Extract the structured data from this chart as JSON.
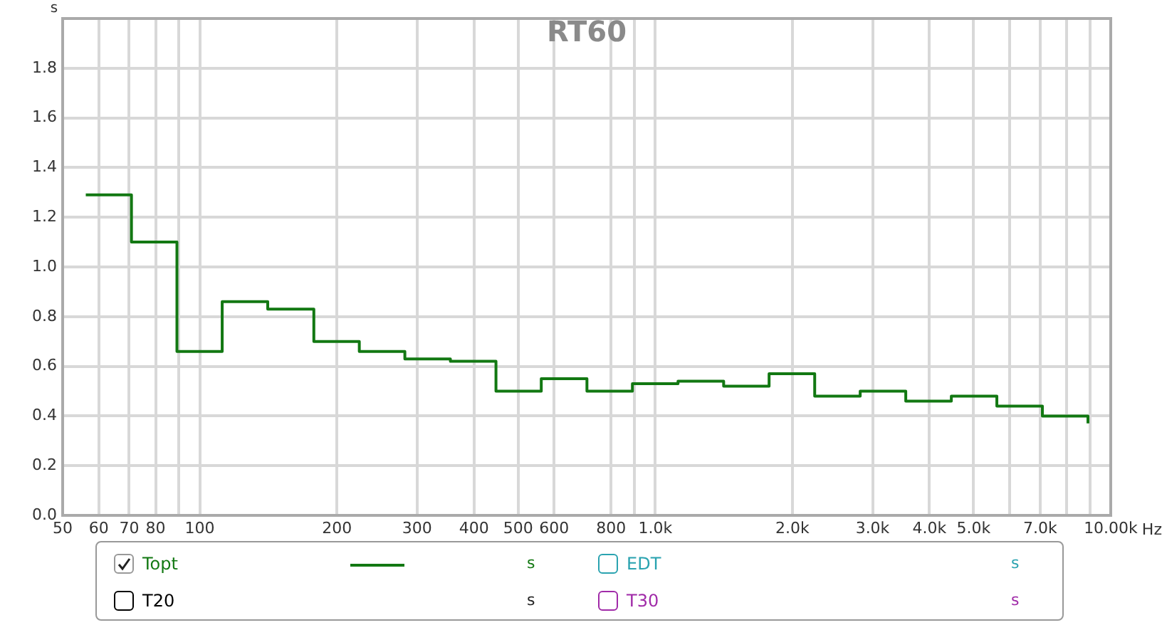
{
  "chart_data": {
    "type": "step",
    "title": "RT60",
    "xlabel": "Hz",
    "ylabel": "s",
    "x": [
      56.2,
      70.8,
      89.1,
      112,
      141,
      178,
      224,
      282,
      355,
      447,
      562,
      708,
      891,
      1122,
      1413,
      1778,
      2239,
      2818,
      3548,
      4467,
      5623,
      7079,
      8913
    ],
    "series": [
      {
        "name": "Topt",
        "color": "#127812",
        "values": [
          1.29,
          1.1,
          0.66,
          0.86,
          0.83,
          0.7,
          0.66,
          0.63,
          0.62,
          0.5,
          0.55,
          0.5,
          0.53,
          0.54,
          0.52,
          0.57,
          0.48,
          0.5,
          0.46,
          0.48,
          0.44,
          0.4,
          0.37
        ]
      },
      {
        "name": "EDT",
        "color": "#2aa3b0",
        "values": [
          null,
          null,
          null,
          null,
          null,
          null,
          null,
          null,
          null,
          null,
          null,
          null,
          null,
          null,
          null,
          null,
          null,
          null,
          null,
          null,
          null,
          null,
          null
        ]
      },
      {
        "name": "T20",
        "color": "#000000",
        "values": [
          null,
          null,
          null,
          null,
          null,
          null,
          null,
          null,
          null,
          null,
          null,
          null,
          null,
          null,
          null,
          null,
          null,
          null,
          null,
          null,
          null,
          null,
          null
        ]
      },
      {
        "name": "T30",
        "color": "#a02aa8",
        "values": [
          null,
          null,
          null,
          null,
          null,
          null,
          null,
          null,
          null,
          null,
          null,
          null,
          null,
          null,
          null,
          null,
          null,
          null,
          null,
          null,
          null,
          null,
          null
        ]
      }
    ],
    "log": "x",
    "xlim": [
      50,
      10000
    ],
    "xticks": [
      50,
      60,
      70,
      80,
      {
        "value": 90,
        "label": null
      },
      100,
      200,
      300,
      400,
      500,
      600,
      800,
      {
        "value": 900,
        "label": null
      },
      {
        "value": 1000,
        "label": "1.0k"
      },
      {
        "value": 2000,
        "label": "2.0k"
      },
      {
        "value": 3000,
        "label": "3.0k"
      },
      {
        "value": 4000,
        "label": "4.0k"
      },
      {
        "value": 5000,
        "label": "5.0k"
      },
      {
        "value": 6000,
        "label": null
      },
      {
        "value": 7000,
        "label": "7.0k"
      },
      {
        "value": 8000,
        "label": null
      },
      {
        "value": 9000,
        "label": null
      },
      {
        "value": 10000,
        "label": "10.00k"
      }
    ],
    "ylim": [
      0,
      2.0
    ],
    "yticks": [
      {
        "value": 0,
        "label": "0.0"
      },
      0.2,
      0.4,
      0.6,
      0.8,
      {
        "value": 1,
        "label": "1.0"
      },
      1.2,
      1.4,
      1.6,
      1.8
    ],
    "grid": true,
    "legend": "bottom",
    "line_style": "solid",
    "marker": "none"
  }
}
